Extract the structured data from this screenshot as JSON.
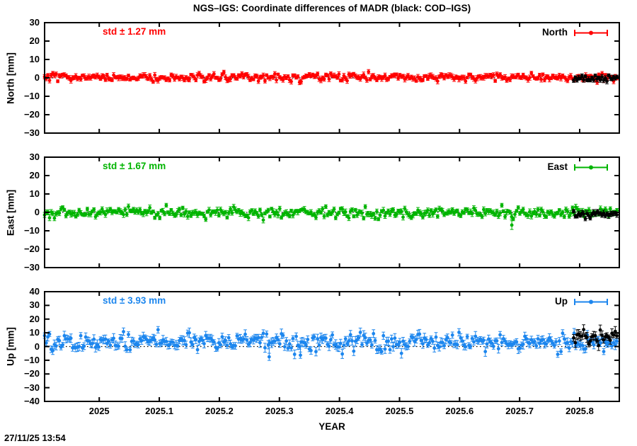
{
  "chart_data": {
    "type": "scatter",
    "title": "NGS–IGS: Coordinate differences of MADR (black: COD–IGS)",
    "subtitle_note": "black series = COD–IGS, colored series = NGS–IGS",
    "xlabel": "YEAR",
    "timestamp": "27/11/25 13:54",
    "x_range": [
      2024.909,
      2025.866
    ],
    "x_ticks": [
      {
        "v": 2025.0,
        "t": "2025"
      },
      {
        "v": 2025.1,
        "t": "2025.1"
      },
      {
        "v": 2025.2,
        "t": "2025.2"
      },
      {
        "v": 2025.3,
        "t": "2025.3"
      },
      {
        "v": 2025.4,
        "t": "2025.4"
      },
      {
        "v": 2025.5,
        "t": "2025.5"
      },
      {
        "v": 2025.6,
        "t": "2025.6"
      },
      {
        "v": 2025.7,
        "t": "2025.7"
      },
      {
        "v": 2025.8,
        "t": "2025.8"
      }
    ],
    "grid": false,
    "legend_position": "top-right-inside",
    "panels": [
      {
        "id": "north",
        "ylabel": "North [mm]",
        "legend_label": "North",
        "std_label": "std ± 1.27 mm",
        "std_mm": 1.27,
        "color": "#ff0000",
        "ylim": [
          -30,
          30
        ],
        "y_ticks": [
          {
            "v": 30,
            "t": "30"
          },
          {
            "v": 20,
            "t": "20"
          },
          {
            "v": 10,
            "t": "10"
          },
          {
            "v": 0,
            "t": "0"
          },
          {
            "v": -10,
            "t": "−10"
          },
          {
            "v": -20,
            "t": "−20"
          },
          {
            "v": -30,
            "t": "−30"
          }
        ],
        "main": {
          "x_start": 2024.909,
          "x_end": 2025.862,
          "n": 349,
          "mean": 0.4,
          "std": 1.05,
          "err": 1.1,
          "clamp": 3.1,
          "seed": 101
        },
        "cod": {
          "x_start": 2025.79,
          "x_end": 2025.862,
          "n": 27,
          "mean": -0.3,
          "std": 1.0,
          "err": 1.1,
          "clamp": 2.4,
          "seed": 201
        },
        "outliers": []
      },
      {
        "id": "east",
        "ylabel": "East [mm]",
        "legend_label": "East",
        "std_label": "std ± 1.67 mm",
        "std_mm": 1.67,
        "color": "#00b400",
        "ylim": [
          -30,
          30
        ],
        "y_ticks": [
          {
            "v": 30,
            "t": "30"
          },
          {
            "v": 20,
            "t": "20"
          },
          {
            "v": 10,
            "t": "10"
          },
          {
            "v": 0,
            "t": "0"
          },
          {
            "v": -10,
            "t": "−10"
          },
          {
            "v": -20,
            "t": "−20"
          },
          {
            "v": -30,
            "t": "−30"
          }
        ],
        "main": {
          "x_start": 2024.909,
          "x_end": 2025.862,
          "n": 349,
          "mean": -0.2,
          "std": 1.45,
          "err": 1.2,
          "clamp": 2.8,
          "seed": 102
        },
        "cod": {
          "x_start": 2025.79,
          "x_end": 2025.862,
          "n": 27,
          "mean": -1.3,
          "std": 1.0,
          "err": 1.2,
          "clamp": 2.4,
          "seed": 202
        },
        "outliers": [
          {
            "x": 2025.687,
            "y": -6.9,
            "err": 2.4
          }
        ]
      },
      {
        "id": "up",
        "ylabel": "Up [mm]",
        "legend_label": "Up",
        "std_label": "std ± 3.93 mm",
        "std_mm": 3.93,
        "color": "#1c86ee",
        "ylim": [
          -40,
          40
        ],
        "y_ticks": [
          {
            "v": 40,
            "t": "40"
          },
          {
            "v": 30,
            "t": "30"
          },
          {
            "v": 20,
            "t": "20"
          },
          {
            "v": 10,
            "t": "10"
          },
          {
            "v": 0,
            "t": "0"
          },
          {
            "v": -10,
            "t": "−10"
          },
          {
            "v": -20,
            "t": "−20"
          },
          {
            "v": -30,
            "t": "−30"
          },
          {
            "v": -40,
            "t": "−40"
          }
        ],
        "main": {
          "x_start": 2024.909,
          "x_end": 2025.862,
          "n": 349,
          "mean": 3.3,
          "std": 3.1,
          "err": 2.6,
          "clamp": 2.9,
          "seed": 103
        },
        "cod": {
          "x_start": 2025.79,
          "x_end": 2025.862,
          "n": 27,
          "mean": 6.5,
          "std": 3.4,
          "err": 2.7,
          "clamp": 2.2,
          "seed": 203
        },
        "outliers": [
          {
            "x": 2025.283,
            "y": -7.5,
            "err": 2.6
          },
          {
            "x": 2025.335,
            "y": -6.3,
            "err": 2.3
          }
        ]
      }
    ]
  }
}
